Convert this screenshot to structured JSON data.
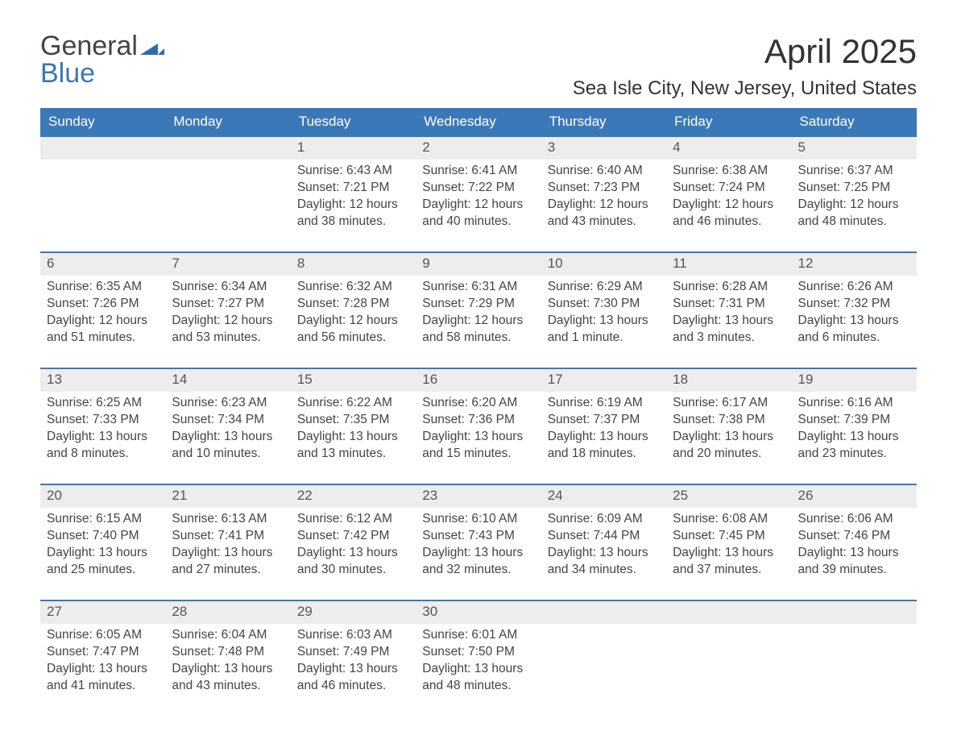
{
  "logo": {
    "line1": "General",
    "line2": "Blue"
  },
  "title": "April 2025",
  "location": "Sea Isle City, New Jersey, United States",
  "colors": {
    "header_bg": "#3b78b8",
    "row_border": "#3b78b8",
    "daynum_bg": "#ededed",
    "text": "#444444",
    "page_bg": "#ffffff"
  },
  "weekdays": [
    "Sunday",
    "Monday",
    "Tuesday",
    "Wednesday",
    "Thursday",
    "Friday",
    "Saturday"
  ],
  "weeks": [
    [
      {
        "empty": true
      },
      {
        "empty": true
      },
      {
        "day": "1",
        "sunrise": "Sunrise: 6:43 AM",
        "sunset": "Sunset: 7:21 PM",
        "daylight1": "Daylight: 12 hours",
        "daylight2": "and 38 minutes."
      },
      {
        "day": "2",
        "sunrise": "Sunrise: 6:41 AM",
        "sunset": "Sunset: 7:22 PM",
        "daylight1": "Daylight: 12 hours",
        "daylight2": "and 40 minutes."
      },
      {
        "day": "3",
        "sunrise": "Sunrise: 6:40 AM",
        "sunset": "Sunset: 7:23 PM",
        "daylight1": "Daylight: 12 hours",
        "daylight2": "and 43 minutes."
      },
      {
        "day": "4",
        "sunrise": "Sunrise: 6:38 AM",
        "sunset": "Sunset: 7:24 PM",
        "daylight1": "Daylight: 12 hours",
        "daylight2": "and 46 minutes."
      },
      {
        "day": "5",
        "sunrise": "Sunrise: 6:37 AM",
        "sunset": "Sunset: 7:25 PM",
        "daylight1": "Daylight: 12 hours",
        "daylight2": "and 48 minutes."
      }
    ],
    [
      {
        "day": "6",
        "sunrise": "Sunrise: 6:35 AM",
        "sunset": "Sunset: 7:26 PM",
        "daylight1": "Daylight: 12 hours",
        "daylight2": "and 51 minutes."
      },
      {
        "day": "7",
        "sunrise": "Sunrise: 6:34 AM",
        "sunset": "Sunset: 7:27 PM",
        "daylight1": "Daylight: 12 hours",
        "daylight2": "and 53 minutes."
      },
      {
        "day": "8",
        "sunrise": "Sunrise: 6:32 AM",
        "sunset": "Sunset: 7:28 PM",
        "daylight1": "Daylight: 12 hours",
        "daylight2": "and 56 minutes."
      },
      {
        "day": "9",
        "sunrise": "Sunrise: 6:31 AM",
        "sunset": "Sunset: 7:29 PM",
        "daylight1": "Daylight: 12 hours",
        "daylight2": "and 58 minutes."
      },
      {
        "day": "10",
        "sunrise": "Sunrise: 6:29 AM",
        "sunset": "Sunset: 7:30 PM",
        "daylight1": "Daylight: 13 hours",
        "daylight2": "and 1 minute."
      },
      {
        "day": "11",
        "sunrise": "Sunrise: 6:28 AM",
        "sunset": "Sunset: 7:31 PM",
        "daylight1": "Daylight: 13 hours",
        "daylight2": "and 3 minutes."
      },
      {
        "day": "12",
        "sunrise": "Sunrise: 6:26 AM",
        "sunset": "Sunset: 7:32 PM",
        "daylight1": "Daylight: 13 hours",
        "daylight2": "and 6 minutes."
      }
    ],
    [
      {
        "day": "13",
        "sunrise": "Sunrise: 6:25 AM",
        "sunset": "Sunset: 7:33 PM",
        "daylight1": "Daylight: 13 hours",
        "daylight2": "and 8 minutes."
      },
      {
        "day": "14",
        "sunrise": "Sunrise: 6:23 AM",
        "sunset": "Sunset: 7:34 PM",
        "daylight1": "Daylight: 13 hours",
        "daylight2": "and 10 minutes."
      },
      {
        "day": "15",
        "sunrise": "Sunrise: 6:22 AM",
        "sunset": "Sunset: 7:35 PM",
        "daylight1": "Daylight: 13 hours",
        "daylight2": "and 13 minutes."
      },
      {
        "day": "16",
        "sunrise": "Sunrise: 6:20 AM",
        "sunset": "Sunset: 7:36 PM",
        "daylight1": "Daylight: 13 hours",
        "daylight2": "and 15 minutes."
      },
      {
        "day": "17",
        "sunrise": "Sunrise: 6:19 AM",
        "sunset": "Sunset: 7:37 PM",
        "daylight1": "Daylight: 13 hours",
        "daylight2": "and 18 minutes."
      },
      {
        "day": "18",
        "sunrise": "Sunrise: 6:17 AM",
        "sunset": "Sunset: 7:38 PM",
        "daylight1": "Daylight: 13 hours",
        "daylight2": "and 20 minutes."
      },
      {
        "day": "19",
        "sunrise": "Sunrise: 6:16 AM",
        "sunset": "Sunset: 7:39 PM",
        "daylight1": "Daylight: 13 hours",
        "daylight2": "and 23 minutes."
      }
    ],
    [
      {
        "day": "20",
        "sunrise": "Sunrise: 6:15 AM",
        "sunset": "Sunset: 7:40 PM",
        "daylight1": "Daylight: 13 hours",
        "daylight2": "and 25 minutes."
      },
      {
        "day": "21",
        "sunrise": "Sunrise: 6:13 AM",
        "sunset": "Sunset: 7:41 PM",
        "daylight1": "Daylight: 13 hours",
        "daylight2": "and 27 minutes."
      },
      {
        "day": "22",
        "sunrise": "Sunrise: 6:12 AM",
        "sunset": "Sunset: 7:42 PM",
        "daylight1": "Daylight: 13 hours",
        "daylight2": "and 30 minutes."
      },
      {
        "day": "23",
        "sunrise": "Sunrise: 6:10 AM",
        "sunset": "Sunset: 7:43 PM",
        "daylight1": "Daylight: 13 hours",
        "daylight2": "and 32 minutes."
      },
      {
        "day": "24",
        "sunrise": "Sunrise: 6:09 AM",
        "sunset": "Sunset: 7:44 PM",
        "daylight1": "Daylight: 13 hours",
        "daylight2": "and 34 minutes."
      },
      {
        "day": "25",
        "sunrise": "Sunrise: 6:08 AM",
        "sunset": "Sunset: 7:45 PM",
        "daylight1": "Daylight: 13 hours",
        "daylight2": "and 37 minutes."
      },
      {
        "day": "26",
        "sunrise": "Sunrise: 6:06 AM",
        "sunset": "Sunset: 7:46 PM",
        "daylight1": "Daylight: 13 hours",
        "daylight2": "and 39 minutes."
      }
    ],
    [
      {
        "day": "27",
        "sunrise": "Sunrise: 6:05 AM",
        "sunset": "Sunset: 7:47 PM",
        "daylight1": "Daylight: 13 hours",
        "daylight2": "and 41 minutes."
      },
      {
        "day": "28",
        "sunrise": "Sunrise: 6:04 AM",
        "sunset": "Sunset: 7:48 PM",
        "daylight1": "Daylight: 13 hours",
        "daylight2": "and 43 minutes."
      },
      {
        "day": "29",
        "sunrise": "Sunrise: 6:03 AM",
        "sunset": "Sunset: 7:49 PM",
        "daylight1": "Daylight: 13 hours",
        "daylight2": "and 46 minutes."
      },
      {
        "day": "30",
        "sunrise": "Sunrise: 6:01 AM",
        "sunset": "Sunset: 7:50 PM",
        "daylight1": "Daylight: 13 hours",
        "daylight2": "and 48 minutes."
      },
      {
        "empty": true
      },
      {
        "empty": true
      },
      {
        "empty": true
      }
    ]
  ]
}
